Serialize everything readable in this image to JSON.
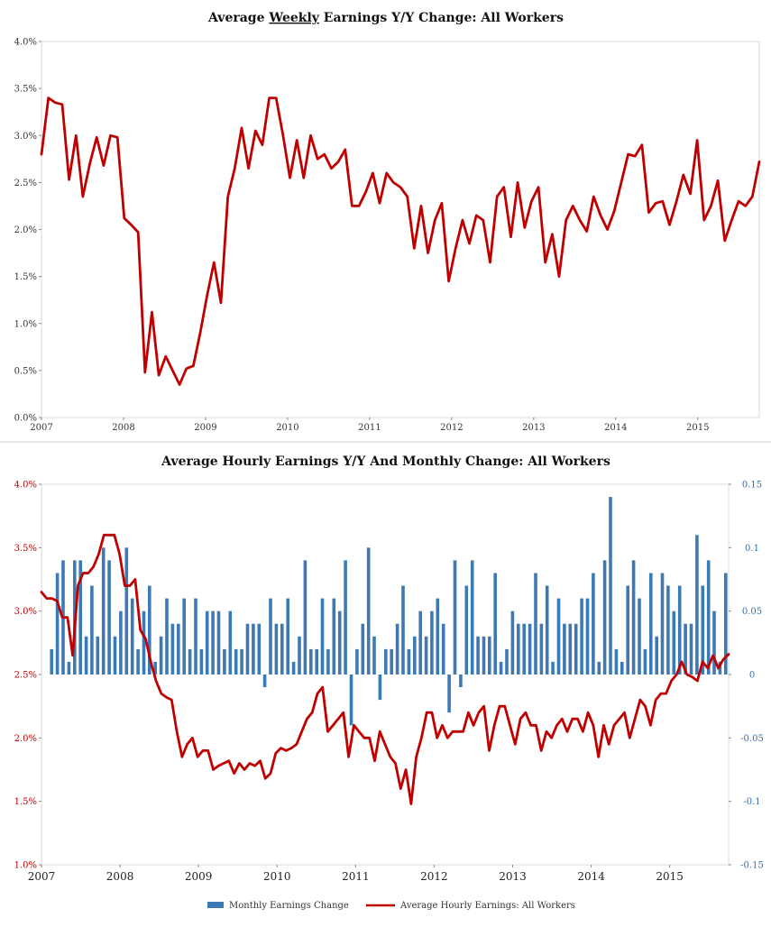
{
  "chart_data": [
    {
      "type": "line",
      "title_parts": [
        "Average ",
        "Weekly",
        " Earnings Y/Y Change: All Workers"
      ],
      "xlabel": "",
      "ylabel": "",
      "ylim": [
        0.0,
        4.0
      ],
      "xlim": [
        2007.0,
        2015.75
      ],
      "grid": false,
      "legend": "none",
      "y_ticks": [
        "0.0%",
        "0.5%",
        "1.0%",
        "1.5%",
        "2.0%",
        "2.5%",
        "3.0%",
        "3.5%",
        "4.0%"
      ],
      "x_ticks": [
        "2007",
        "2008",
        "2009",
        "2010",
        "2011",
        "2012",
        "2013",
        "2014",
        "2015"
      ],
      "line_color": "#c00000",
      "series": [
        {
          "name": "Average Weekly Earnings Y/Y",
          "values": [
            2.8,
            3.4,
            3.35,
            3.33,
            2.53,
            3.0,
            2.35,
            2.7,
            2.98,
            2.68,
            3.0,
            2.98,
            2.12,
            2.05,
            1.97,
            0.48,
            1.12,
            0.45,
            0.65,
            0.5,
            0.35,
            0.52,
            0.55,
            0.9,
            1.3,
            1.65,
            1.22,
            2.35,
            2.65,
            3.08,
            2.65,
            3.05,
            2.9,
            3.4,
            3.4,
            3.0,
            2.55,
            2.95,
            2.55,
            3.0,
            2.75,
            2.8,
            2.65,
            2.72,
            2.85,
            2.25,
            2.25,
            2.4,
            2.6,
            2.28,
            2.6,
            2.5,
            2.45,
            2.35,
            1.8,
            2.25,
            1.75,
            2.1,
            2.28,
            1.45,
            1.8,
            2.1,
            1.85,
            2.15,
            2.1,
            1.65,
            2.35,
            2.45,
            1.92,
            2.5,
            2.02,
            2.3,
            2.45,
            1.65,
            1.95,
            1.5,
            2.1,
            2.25,
            2.1,
            1.98,
            2.35,
            2.15,
            2.0,
            2.2,
            2.5,
            2.8,
            2.78,
            2.9,
            2.18,
            2.28,
            2.3,
            2.05,
            2.3,
            2.58,
            2.38,
            2.95,
            2.1,
            2.25,
            2.52,
            1.88,
            2.1,
            2.3,
            2.25,
            2.35,
            2.72
          ]
        }
      ]
    },
    {
      "type": "bar+line",
      "title": "Average Hourly Earnings Y/Y And Monthly Change: All Workers",
      "xlabel": "",
      "ylabel_left": "",
      "ylabel_right": "",
      "ylim_left": [
        1.0,
        4.0
      ],
      "ylim_right": [
        -0.15,
        0.15
      ],
      "xlim": [
        2007.0,
        2015.75
      ],
      "grid": false,
      "legend": "bottom-center",
      "y_ticks_left": [
        "1.0%",
        "1.5%",
        "2.0%",
        "2.5%",
        "3.0%",
        "3.5%",
        "4.0%"
      ],
      "y_ticks_right": [
        "-0.15",
        "-0.1",
        "-0.05",
        "0",
        "0.05",
        "0.1",
        "0.15"
      ],
      "x_ticks": [
        "2007",
        "2008",
        "2009",
        "2010",
        "2011",
        "2012",
        "2013",
        "2014",
        "2015"
      ],
      "legend_entries": [
        {
          "label": "Monthly Earnings Change",
          "color": "#3d7ab5",
          "kind": "bar"
        },
        {
          "label": "Average Hourly Earnings: All Workers",
          "color": "#c00000",
          "kind": "line"
        }
      ],
      "series": [
        {
          "name": "Monthly Earnings Change",
          "axis": "right",
          "color": "#3d7ab5",
          "values": [
            0.02,
            0.08,
            0.09,
            0.01,
            0.09,
            0.09,
            0.03,
            0.07,
            0.03,
            0.1,
            0.09,
            0.03,
            0.05,
            0.1,
            0.06,
            0.02,
            0.05,
            0.07,
            0.01,
            0.03,
            0.06,
            0.04,
            0.04,
            0.06,
            0.02,
            0.06,
            0.02,
            0.05,
            0.05,
            0.05,
            0.02,
            0.05,
            0.02,
            0.02,
            0.04,
            0.04,
            0.04,
            -0.01,
            0.06,
            0.04,
            0.04,
            0.06,
            0.01,
            0.03,
            0.09,
            0.02,
            0.02,
            0.06,
            0.02,
            0.06,
            0.05,
            0.09,
            -0.04,
            0.02,
            0.04,
            0.1,
            0.03,
            -0.02,
            0.02,
            0.02,
            0.04,
            0.07,
            0.02,
            0.03,
            0.05,
            0.03,
            0.05,
            0.06,
            0.04,
            -0.03,
            0.09,
            -0.01,
            0.07,
            0.09,
            0.03,
            0.03,
            0.03,
            0.08,
            0.01,
            0.02,
            0.05,
            0.04,
            0.04,
            0.04,
            0.08,
            0.04,
            0.07,
            0.01,
            0.06,
            0.04,
            0.04,
            0.04,
            0.06,
            0.06,
            0.08,
            0.01,
            0.09,
            0.14,
            0.02,
            0.01,
            0.07,
            0.09,
            0.06,
            0.02,
            0.08,
            0.03,
            0.08,
            0.07,
            0.05,
            0.07,
            0.04,
            0.04,
            0.11,
            0.07,
            0.09,
            0.05,
            0.01,
            0.08
          ]
        },
        {
          "name": "Average Hourly Earnings: All Workers",
          "axis": "left",
          "color": "#c00000",
          "values": [
            3.15,
            3.1,
            3.1,
            3.08,
            2.95,
            2.95,
            2.65,
            3.2,
            3.3,
            3.3,
            3.35,
            3.45,
            3.6,
            3.6,
            3.6,
            3.45,
            3.2,
            3.2,
            3.25,
            2.85,
            2.78,
            2.6,
            2.45,
            2.35,
            2.32,
            2.3,
            2.05,
            1.85,
            1.95,
            2.0,
            1.85,
            1.9,
            1.9,
            1.75,
            1.78,
            1.8,
            1.82,
            1.72,
            1.8,
            1.75,
            1.8,
            1.78,
            1.82,
            1.68,
            1.72,
            1.88,
            1.92,
            1.9,
            1.92,
            1.95,
            2.05,
            2.15,
            2.2,
            2.35,
            2.4,
            2.05,
            2.1,
            2.15,
            2.2,
            1.85,
            2.1,
            2.05,
            2.0,
            2.0,
            1.82,
            2.05,
            1.95,
            1.85,
            1.8,
            1.6,
            1.75,
            1.48,
            1.85,
            2.0,
            2.2,
            2.2,
            2.0,
            2.1,
            2.0,
            2.05,
            2.05,
            2.05,
            2.2,
            2.1,
            2.2,
            2.25,
            1.9,
            2.1,
            2.25,
            2.25,
            2.1,
            1.95,
            2.15,
            2.2,
            2.1,
            2.1,
            1.9,
            2.05,
            2.0,
            2.1,
            2.15,
            2.05,
            2.15,
            2.15,
            2.05,
            2.2,
            2.1,
            1.85,
            2.1,
            1.95,
            2.1,
            2.15,
            2.2,
            2.0,
            2.15,
            2.3,
            2.25,
            2.1,
            2.3,
            2.35,
            2.35,
            2.45,
            2.5,
            2.6,
            2.5,
            2.48,
            2.45,
            2.6,
            2.55,
            2.65,
            2.55,
            2.62,
            2.66
          ]
        }
      ]
    }
  ]
}
